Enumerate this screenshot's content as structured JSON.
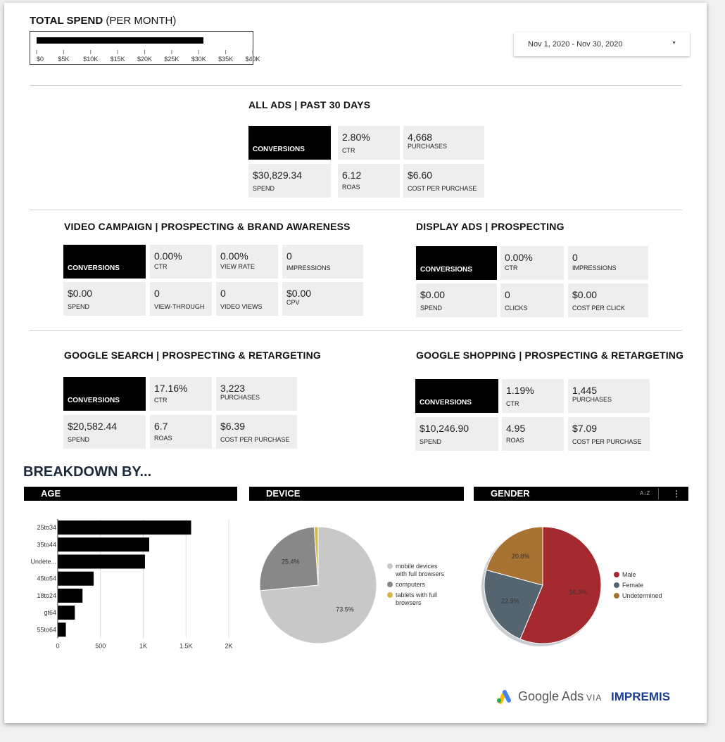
{
  "total_spend": {
    "title_bold": "TOTAL SPEND",
    "title_rest": " (PER MONTH)",
    "ticks": [
      "$0",
      "$5K",
      "$10K",
      "$15K",
      "$20K",
      "$25K",
      "$30K",
      "$35K",
      "$40K"
    ],
    "value": 30829.34,
    "axis_max": 40000
  },
  "date_range": {
    "label": "Nov 1, 2020 - Nov 30, 2020"
  },
  "all_ads": {
    "title": "ALL ADS | PAST 30 DAYS",
    "conversions_label": "CONVERSIONS",
    "metrics": [
      {
        "value": "2.80%",
        "label": "CTR"
      },
      {
        "value": "4,668",
        "label": "PURCHASES"
      },
      {
        "value": "$30,829.34",
        "label": "SPEND"
      },
      {
        "value": "6.12",
        "label": "ROAS"
      },
      {
        "value": "$6.60",
        "label": "COST PER PURCHASE"
      }
    ]
  },
  "video": {
    "title": "VIDEO CAMPAIGN | PROSPECTING & BRAND AWARENESS",
    "conversions_label": "CONVERSIONS",
    "metrics": [
      {
        "value": "0.00%",
        "label": "CTR"
      },
      {
        "value": "0.00%",
        "label": "VIEW RATE"
      },
      {
        "value": "0",
        "label": "IMPRESSIONS"
      },
      {
        "value": "$0.00",
        "label": "SPEND"
      },
      {
        "value": "0",
        "label": "VIEW-THROUGH"
      },
      {
        "value": "0",
        "label": "VIDEO VIEWS"
      },
      {
        "value": "$0.00",
        "label": "CPV"
      }
    ]
  },
  "display": {
    "title": "DISPLAY ADS | PROSPECTING",
    "conversions_label": "CONVERSIONS",
    "metrics": [
      {
        "value": "0.00%",
        "label": "CTR"
      },
      {
        "value": "0",
        "label": "IMPRESSIONS"
      },
      {
        "value": "$0.00",
        "label": "SPEND"
      },
      {
        "value": "0",
        "label": "CLICKS"
      },
      {
        "value": "$0.00",
        "label": "COST PER CLICK"
      }
    ]
  },
  "search": {
    "title": "GOOGLE SEARCH | PROSPECTING & RETARGETING",
    "conversions_label": "CONVERSIONS",
    "metrics": [
      {
        "value": "17.16%",
        "label": "CTR"
      },
      {
        "value": "3,223",
        "label": "PURCHASES"
      },
      {
        "value": "$20,582.44",
        "label": "SPEND"
      },
      {
        "value": "6.7",
        "label": "ROAS"
      },
      {
        "value": "$6.39",
        "label": "COST PER PURCHASE"
      }
    ]
  },
  "shopping": {
    "title": "GOOGLE SHOPPING | PROSPECTING & RETARGETING",
    "conversions_label": "CONVERSIONS",
    "metrics": [
      {
        "value": "1.19%",
        "label": "CTR"
      },
      {
        "value": "1,445",
        "label": "PURCHASES"
      },
      {
        "value": "$10,246.90",
        "label": "SPEND"
      },
      {
        "value": "4.95",
        "label": "ROAS"
      },
      {
        "value": "$7.09",
        "label": "COST PER PURCHASE"
      }
    ]
  },
  "breakdown": {
    "title": "BREAKDOWN BY...",
    "age_header": "AGE",
    "device_header": "DEVICE",
    "gender_header": "GENDER",
    "sort_icon": "sort-az-icon",
    "more_icon": "more-vert-icon"
  },
  "footer": {
    "google_ads": "Google Ads",
    "via": "VIA",
    "brand": "IMPREMIS"
  },
  "chart_data": [
    {
      "type": "bar",
      "name": "age",
      "orientation": "horizontal",
      "categories": [
        "25to34",
        "35to44",
        "Undete...",
        "45to54",
        "18to24",
        "gt64",
        "55to64"
      ],
      "values": [
        1560,
        1070,
        1020,
        420,
        290,
        200,
        95
      ],
      "xticks": [
        "0",
        "500",
        "1K",
        "1.5K",
        "2K"
      ],
      "xlim": [
        0,
        2000
      ],
      "color": "#000000",
      "grid": true
    },
    {
      "type": "pie",
      "name": "device",
      "labels": [
        "mobile devices with full browsers",
        "computers",
        "tablets with full browsers"
      ],
      "values": [
        73.5,
        25.4,
        1.1
      ],
      "data_labels": [
        "73.5%",
        "25.4%",
        ""
      ],
      "colors": [
        "#c8c8c8",
        "#888888",
        "#d4b84a"
      ],
      "legend_position": "right"
    },
    {
      "type": "pie",
      "name": "gender",
      "labels": [
        "Male",
        "Female",
        "Undetermined"
      ],
      "values": [
        56.3,
        22.9,
        20.8
      ],
      "data_labels": [
        "56.3%",
        "22.9%",
        "20.8%"
      ],
      "colors": [
        "#a52a2f",
        "#556570",
        "#a87232"
      ],
      "legend_position": "right"
    }
  ]
}
